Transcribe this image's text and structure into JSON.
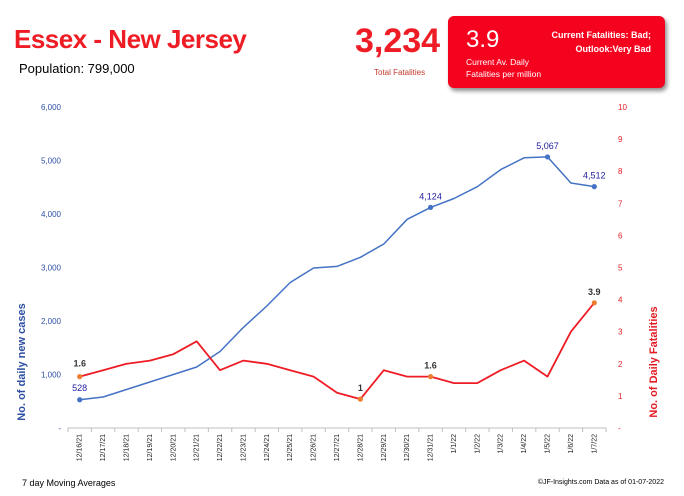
{
  "header": {
    "title": "Essex - New Jersey",
    "population": "Population: 799,000",
    "total_fatalities": "3,234",
    "total_fatalities_label": "Total Fatalities",
    "current_avg": "3.9",
    "current_avg_label_line1": "Current Av. Daily",
    "current_avg_label_line2": "Fatalities per million",
    "status_line1": "Current Fatalities: Bad;",
    "status_line2": "Outlook:Very Bad"
  },
  "footer": {
    "left": "7 day Moving Averages",
    "right": "©JF-Insights.com  Data as of 01-07-2022"
  },
  "colors": {
    "cases": "#4472c4",
    "deaths": "#ee1c25",
    "highlight": "#ed7d31"
  },
  "chart_data": {
    "type": "line",
    "categories": [
      "12/16/21",
      "12/17/21",
      "12/18/21",
      "12/19/21",
      "12/20/21",
      "12/21/21",
      "12/22/21",
      "12/23/21",
      "12/24/21",
      "12/25/21",
      "12/26/21",
      "12/27/21",
      "12/28/21",
      "12/29/21",
      "12/30/21",
      "12/31/21",
      "1/1/22",
      "1/2/22",
      "1/3/22",
      "1/4/22",
      "1/5/22",
      "1/6/22",
      "1/7/22"
    ],
    "ylabel_left": "No. of daily new  cases",
    "ylabel_right": "No. of Daily Fatalities",
    "y_left_ticks": [
      "-",
      "1,000",
      "2,000",
      "3,000",
      "4,000",
      "5,000",
      "6,000"
    ],
    "y_right_ticks": [
      "-",
      "1",
      "2",
      "3",
      "4",
      "5",
      "6",
      "7",
      "8",
      "9",
      "10"
    ],
    "ylim_left": [
      0,
      6000
    ],
    "ylim_right": [
      0,
      10
    ],
    "series": [
      {
        "name": "No. of daily new  cases",
        "axis": "left",
        "values": [
          528,
          580,
          720,
          860,
          1000,
          1140,
          1430,
          1880,
          2280,
          2720,
          2990,
          3020,
          3190,
          3440,
          3900,
          4124,
          4290,
          4510,
          4830,
          5050,
          5067,
          4580,
          4512
        ],
        "labels": [
          {
            "index": 0,
            "text": "528"
          },
          {
            "index": 15,
            "text": "4,124"
          },
          {
            "index": 20,
            "text": "5,067"
          },
          {
            "index": 22,
            "text": "4,512"
          }
        ]
      },
      {
        "name": "No. of Daily Fatalities",
        "axis": "right",
        "values": [
          1.6,
          1.8,
          2.0,
          2.1,
          2.3,
          2.7,
          1.8,
          2.1,
          2.0,
          1.8,
          1.6,
          1.1,
          0.9,
          1.8,
          1.6,
          1.6,
          1.4,
          1.4,
          1.8,
          2.1,
          1.6,
          3.0,
          3.9
        ],
        "labels": [
          {
            "index": 0,
            "text": "1.6"
          },
          {
            "index": 12,
            "text": "1"
          },
          {
            "index": 15,
            "text": "1.6"
          },
          {
            "index": 22,
            "text": "3.9"
          }
        ]
      }
    ]
  }
}
